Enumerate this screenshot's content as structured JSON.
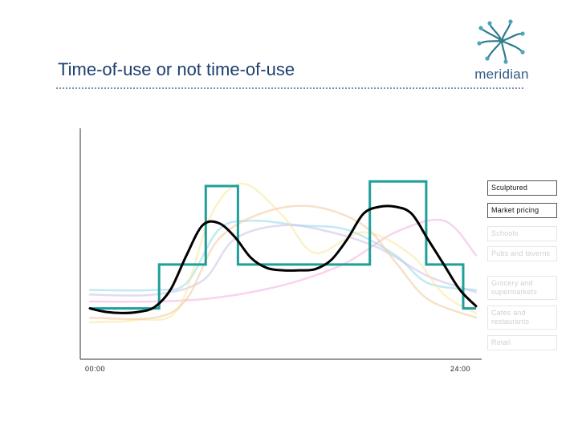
{
  "slide": {
    "title": "Time-of-use or not time-of-use",
    "logo_text": "meridian",
    "logo_icon": "meridian-logo-icon"
  },
  "colors": {
    "title": "#1c3f6e",
    "sculptured": "#1f9f9a",
    "market_pricing": "#000000",
    "axis": "#333333"
  },
  "chart_data": {
    "type": "line",
    "title": "",
    "xlabel": "",
    "ylabel": "",
    "x_tick_labels": [
      "00:00",
      "24:00"
    ],
    "xlim": [
      0,
      24
    ],
    "ylim": [
      0,
      100
    ],
    "grid": false,
    "legend_position": "right",
    "legend": [
      {
        "label": "Sculptured",
        "state": "active"
      },
      {
        "label": "Market pricing",
        "state": "active"
      },
      {
        "label": "Schools",
        "state": "faded"
      },
      {
        "label": "Pubs and taverns",
        "state": "faded"
      },
      {
        "label": "Grocery and supermarkets",
        "state": "faded"
      },
      {
        "label": "Cafes and restaurants",
        "state": "faded"
      },
      {
        "label": "Retail",
        "state": "faded"
      }
    ],
    "series": [
      {
        "name": "Sculptured",
        "style": "step",
        "color": "#1f9f9a",
        "x": [
          0,
          4.3,
          7.2,
          9.2,
          17.4,
          20.9,
          23.2,
          24
        ],
        "y": [
          22,
          41,
          75,
          41,
          77,
          41,
          22,
          22
        ]
      },
      {
        "name": "Market pricing",
        "style": "smooth",
        "color": "#000000",
        "x": [
          0,
          1,
          2,
          3,
          4,
          5,
          6,
          7,
          8,
          9,
          10,
          11,
          12,
          13,
          14,
          15,
          16,
          17,
          18,
          19,
          20,
          21,
          22,
          23,
          24
        ],
        "y": [
          22,
          20.5,
          20,
          20.5,
          22.5,
          30,
          45,
          58,
          59,
          53,
          44,
          39.5,
          38.5,
          38.5,
          39,
          43,
          52,
          63,
          66,
          66,
          63,
          52,
          41,
          30,
          23
        ]
      },
      {
        "name": "Schools",
        "style": "smooth",
        "color": "#8fd8e8",
        "x": [
          0,
          4,
          6,
          8,
          10,
          13,
          16,
          19,
          21,
          24
        ],
        "y": [
          30,
          30,
          33,
          56,
          60,
          58,
          56,
          45,
          33,
          30
        ]
      },
      {
        "name": "Pubs and taverns",
        "style": "smooth",
        "color": "#f5aee0",
        "x": [
          0,
          4,
          7,
          10,
          13,
          16,
          19,
          22,
          24
        ],
        "y": [
          25,
          25,
          26,
          29,
          34,
          42,
          55,
          60,
          45
        ]
      },
      {
        "name": "Grocery and supermarkets",
        "style": "smooth",
        "color": "#c9c0ea",
        "x": [
          0,
          4,
          7,
          9,
          12,
          15,
          18,
          21,
          24
        ],
        "y": [
          28,
          28,
          34,
          52,
          58,
          55,
          48,
          36,
          29
        ]
      },
      {
        "name": "Cafes and restaurants",
        "style": "smooth",
        "color": "#f7e89a",
        "x": [
          0,
          3,
          5.5,
          7.5,
          9.5,
          12,
          14,
          17,
          20,
          22,
          24
        ],
        "y": [
          16,
          17,
          22,
          62,
          76,
          62,
          46,
          55,
          45,
          28,
          20
        ]
      },
      {
        "name": "Retail",
        "style": "smooth",
        "color": "#f3c79a",
        "x": [
          0,
          4,
          6,
          8,
          11,
          14,
          17,
          19,
          21,
          24
        ],
        "y": [
          18,
          18,
          26,
          52,
          64,
          66,
          58,
          42,
          26,
          18
        ]
      }
    ]
  }
}
